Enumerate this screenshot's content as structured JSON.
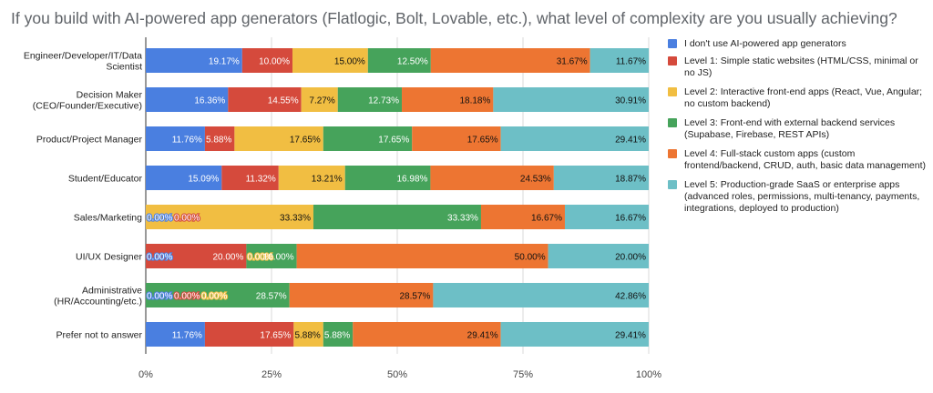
{
  "chart_data": {
    "type": "bar",
    "orientation": "horizontal",
    "stacked": "percent",
    "title": "If you build with AI-powered app generators (Flatlogic, Bolt, Lovable, etc.), what level of complexity are you usually achieving?",
    "categories": [
      [
        "Engineer/Developer/IT/Data",
        "Scientist"
      ],
      [
        "Decision Maker",
        "(CEO/Founder/Executive)"
      ],
      [
        "Product/Project Manager"
      ],
      [
        "Student/Educator"
      ],
      [
        "Sales/Marketing"
      ],
      [
        "UI/UX Designer"
      ],
      [
        "Administrative",
        "(HR/Accounting/etc.)"
      ],
      [
        "Prefer not to answer"
      ]
    ],
    "series": [
      {
        "name": "I don't use AI-powered app generators",
        "color": "#4a7fe0",
        "values": [
          19.17,
          16.36,
          11.76,
          15.09,
          0.0,
          0.0,
          0.0,
          11.76
        ]
      },
      {
        "name": "Level 1: Simple static websites (HTML/CSS, minimal or no JS)",
        "color": "#d54a3c",
        "values": [
          10.0,
          14.55,
          5.88,
          11.32,
          0.0,
          20.0,
          0.0,
          17.65
        ]
      },
      {
        "name": "Level 2: Interactive front-end apps (React, Vue, Angular; no custom backend)",
        "color": "#f1be42",
        "values": [
          15.0,
          7.27,
          17.65,
          13.21,
          33.33,
          0.0,
          0.0,
          5.88
        ]
      },
      {
        "name": "Level 3: Front-end with external backend services (Supabase, Firebase, REST APIs)",
        "color": "#46a35b",
        "values": [
          12.5,
          12.73,
          17.65,
          16.98,
          33.33,
          10.0,
          28.57,
          5.88
        ]
      },
      {
        "name": "Level 4: Full-stack custom apps (custom frontend/backend, CRUD, auth, basic data management)",
        "color": "#ed7532",
        "values": [
          31.67,
          18.18,
          17.65,
          24.53,
          16.67,
          50.0,
          28.57,
          29.41
        ]
      },
      {
        "name": "Level 5: Production-grade SaaS or enterprise apps (advanced roles, permissions, multi-tenancy, payments, integrations, deployed to production)",
        "color": "#6dbfc6",
        "values": [
          11.67,
          30.91,
          29.41,
          18.87,
          16.67,
          20.0,
          42.86,
          29.41
        ]
      }
    ],
    "xlim": [
      0,
      100
    ],
    "xticks": [
      "0%",
      "25%",
      "50%",
      "75%",
      "100%"
    ],
    "grid": true,
    "legend_position": "right"
  }
}
